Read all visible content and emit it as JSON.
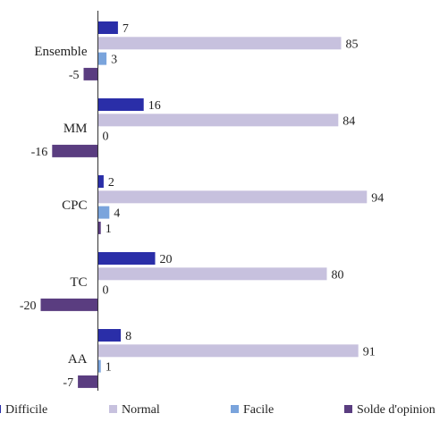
{
  "chart_data": {
    "type": "bar",
    "orientation": "horizontal",
    "categories": [
      "Ensemble",
      "MM",
      "CPC",
      "TC",
      "AA"
    ],
    "series": [
      {
        "name": "Difficile",
        "values": [
          7,
          16,
          2,
          20,
          8
        ],
        "color": "#2a2ea8"
      },
      {
        "name": "Normal",
        "values": [
          85,
          84,
          94,
          80,
          91
        ],
        "color": "#c7c1de"
      },
      {
        "name": "Facile",
        "values": [
          3,
          0,
          4,
          0,
          1
        ],
        "color": "#7aa4dc"
      },
      {
        "name": "Solde d'opinion",
        "values": [
          -5,
          -16,
          1,
          -20,
          -7
        ],
        "color": "#5a3d80"
      }
    ],
    "xlim": [
      -20,
      100
    ],
    "grid": false,
    "legend_position": "bottom"
  }
}
